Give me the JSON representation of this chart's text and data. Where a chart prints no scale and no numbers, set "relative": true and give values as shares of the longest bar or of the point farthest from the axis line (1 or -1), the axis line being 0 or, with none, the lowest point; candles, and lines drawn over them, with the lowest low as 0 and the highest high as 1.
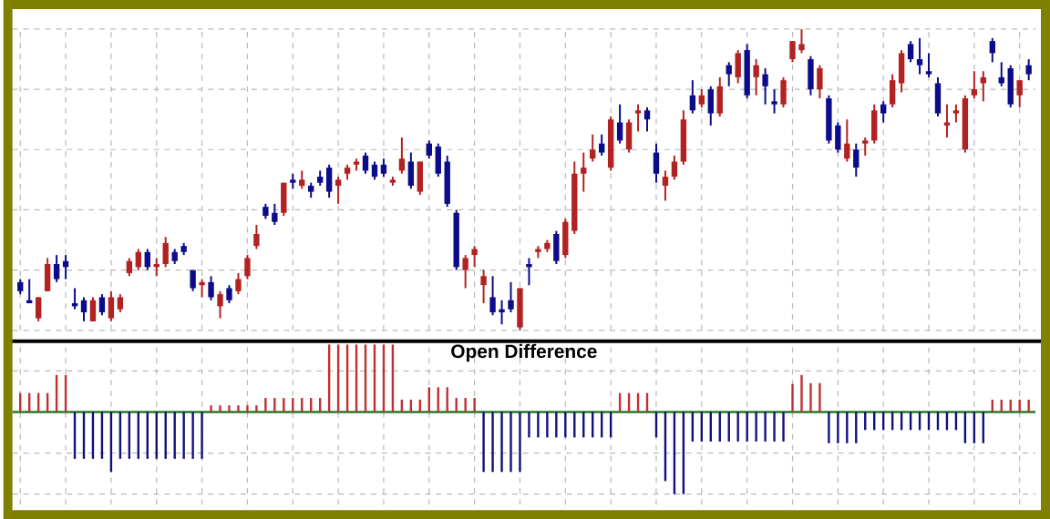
{
  "chart_data": [
    {
      "type": "candlestick",
      "relative": true,
      "grid": true,
      "categories": [
        null,
        null,
        null,
        null,
        null,
        null,
        null,
        null,
        null,
        null,
        null,
        null,
        null,
        null,
        null,
        null,
        null,
        null,
        null,
        null,
        null,
        null,
        null,
        null,
        null,
        null,
        null,
        null,
        null,
        null,
        null,
        null,
        null,
        null,
        null,
        null,
        null,
        null,
        null,
        null,
        null,
        null,
        null,
        null,
        null,
        null,
        null,
        null,
        null,
        null,
        null,
        null,
        null,
        null,
        null,
        null,
        null,
        null,
        null,
        null,
        null,
        null,
        null,
        null,
        null,
        null,
        null,
        null,
        null,
        null,
        null,
        null,
        null,
        null,
        null,
        null,
        null,
        null,
        null,
        null,
        null,
        null,
        null,
        null,
        null,
        null,
        null,
        null,
        null,
        null,
        null,
        null,
        null,
        null,
        null,
        null,
        null,
        null,
        null,
        null,
        null,
        null,
        null,
        null,
        null,
        null,
        null,
        null,
        null,
        null,
        null,
        null
      ],
      "ohlc": [
        [
          0.16,
          0.17,
          0.12,
          0.13
        ],
        [
          0.1,
          0.17,
          0.09,
          0.09
        ],
        [
          0.04,
          0.11,
          0.03,
          0.11
        ],
        [
          0.13,
          0.24,
          0.13,
          0.22
        ],
        [
          0.22,
          0.25,
          0.16,
          0.17
        ],
        [
          0.23,
          0.25,
          0.17,
          0.21
        ],
        [
          0.09,
          0.14,
          0.07,
          0.08
        ],
        [
          0.1,
          0.11,
          0.03,
          0.06
        ],
        [
          0.03,
          0.11,
          0.03,
          0.1
        ],
        [
          0.11,
          0.12,
          0.05,
          0.06
        ],
        [
          0.04,
          0.13,
          0.03,
          0.11
        ],
        [
          0.07,
          0.12,
          0.06,
          0.11
        ],
        [
          0.19,
          0.24,
          0.18,
          0.23
        ],
        [
          0.21,
          0.27,
          0.2,
          0.26
        ],
        [
          0.26,
          0.27,
          0.2,
          0.21
        ],
        [
          0.21,
          0.24,
          0.18,
          0.22
        ],
        [
          0.22,
          0.31,
          0.21,
          0.29
        ],
        [
          0.26,
          0.27,
          0.22,
          0.23
        ],
        [
          0.28,
          0.29,
          0.25,
          0.26
        ],
        [
          0.2,
          0.2,
          0.13,
          0.14
        ],
        [
          0.15,
          0.17,
          0.11,
          0.16
        ],
        [
          0.16,
          0.18,
          0.1,
          0.11
        ],
        [
          0.08,
          0.13,
          0.04,
          0.12
        ],
        [
          0.14,
          0.15,
          0.09,
          0.1
        ],
        [
          0.13,
          0.19,
          0.12,
          0.17
        ],
        [
          0.18,
          0.25,
          0.17,
          0.24
        ],
        [
          0.28,
          0.35,
          0.27,
          0.32
        ],
        [
          0.41,
          0.42,
          0.37,
          0.38
        ],
        [
          0.39,
          0.42,
          0.35,
          0.36
        ],
        [
          0.39,
          0.49,
          0.38,
          0.49
        ],
        [
          0.5,
          0.52,
          0.47,
          0.49
        ],
        [
          0.48,
          0.53,
          0.47,
          0.5
        ],
        [
          0.48,
          0.49,
          0.44,
          0.46
        ],
        [
          0.51,
          0.53,
          0.48,
          0.49
        ],
        [
          0.54,
          0.55,
          0.44,
          0.46
        ],
        [
          0.48,
          0.51,
          0.42,
          0.5
        ],
        [
          0.52,
          0.55,
          0.5,
          0.54
        ],
        [
          0.55,
          0.57,
          0.53,
          0.56
        ],
        [
          0.58,
          0.59,
          0.52,
          0.53
        ],
        [
          0.55,
          0.56,
          0.5,
          0.51
        ],
        [
          0.55,
          0.57,
          0.51,
          0.52
        ],
        [
          0.49,
          0.51,
          0.48,
          0.5
        ],
        [
          0.53,
          0.64,
          0.52,
          0.57
        ],
        [
          0.56,
          0.59,
          0.47,
          0.48
        ],
        [
          0.46,
          0.56,
          0.45,
          0.56
        ],
        [
          0.62,
          0.63,
          0.57,
          0.58
        ],
        [
          0.61,
          0.62,
          0.51,
          0.52
        ],
        [
          0.56,
          0.58,
          0.41,
          0.42
        ],
        [
          0.39,
          0.4,
          0.2,
          0.21
        ],
        [
          0.2,
          0.25,
          0.14,
          0.24
        ],
        [
          0.25,
          0.28,
          0.21,
          0.27
        ],
        [
          0.15,
          0.2,
          0.09,
          0.18
        ],
        [
          0.11,
          0.18,
          0.05,
          0.06
        ],
        [
          0.07,
          0.1,
          0.02,
          0.06
        ],
        [
          0.1,
          0.16,
          0.06,
          0.07
        ],
        [
          0.01,
          0.14,
          0.0,
          0.14
        ],
        [
          0.22,
          0.24,
          0.15,
          0.21
        ],
        [
          0.26,
          0.28,
          0.24,
          0.27
        ],
        [
          0.27,
          0.3,
          0.26,
          0.29
        ],
        [
          0.32,
          0.33,
          0.22,
          0.23
        ],
        [
          0.25,
          0.37,
          0.24,
          0.36
        ],
        [
          0.33,
          0.56,
          0.32,
          0.52
        ],
        [
          0.52,
          0.59,
          0.46,
          0.54
        ],
        [
          0.57,
          0.65,
          0.56,
          0.6
        ],
        [
          0.62,
          0.65,
          0.58,
          0.59
        ],
        [
          0.54,
          0.71,
          0.53,
          0.7
        ],
        [
          0.69,
          0.75,
          0.62,
          0.63
        ],
        [
          0.6,
          0.7,
          0.59,
          0.69
        ],
        [
          0.72,
          0.75,
          0.66,
          0.73
        ],
        [
          0.73,
          0.74,
          0.66,
          0.7
        ],
        [
          0.59,
          0.62,
          0.49,
          0.52
        ],
        [
          0.48,
          0.53,
          0.43,
          0.51
        ],
        [
          0.51,
          0.58,
          0.5,
          0.56
        ],
        [
          0.56,
          0.73,
          0.55,
          0.7
        ],
        [
          0.78,
          0.83,
          0.72,
          0.73
        ],
        [
          0.75,
          0.8,
          0.74,
          0.78
        ],
        [
          0.8,
          0.81,
          0.68,
          0.72
        ],
        [
          0.72,
          0.84,
          0.71,
          0.81
        ],
        [
          0.88,
          0.89,
          0.81,
          0.85
        ],
        [
          0.84,
          0.93,
          0.82,
          0.92
        ],
        [
          0.93,
          0.95,
          0.77,
          0.78
        ],
        [
          0.84,
          0.9,
          0.78,
          0.88
        ],
        [
          0.85,
          0.87,
          0.75,
          0.81
        ],
        [
          0.76,
          0.8,
          0.72,
          0.75
        ],
        [
          0.75,
          0.84,
          0.74,
          0.83
        ],
        [
          0.9,
          0.96,
          0.89,
          0.96
        ],
        [
          0.93,
          1.0,
          0.92,
          0.95
        ],
        [
          0.9,
          0.91,
          0.78,
          0.8
        ],
        [
          0.8,
          0.88,
          0.77,
          0.87
        ],
        [
          0.77,
          0.78,
          0.62,
          0.63
        ],
        [
          0.68,
          0.69,
          0.59,
          0.6
        ],
        [
          0.57,
          0.7,
          0.56,
          0.62
        ],
        [
          0.6,
          0.62,
          0.51,
          0.54
        ],
        [
          0.62,
          0.64,
          0.58,
          0.63
        ],
        [
          0.63,
          0.75,
          0.62,
          0.73
        ],
        [
          0.75,
          0.76,
          0.69,
          0.72
        ],
        [
          0.75,
          0.85,
          0.74,
          0.83
        ],
        [
          0.82,
          0.93,
          0.79,
          0.92
        ],
        [
          0.95,
          0.96,
          0.89,
          0.9
        ],
        [
          0.9,
          0.97,
          0.85,
          0.88
        ],
        [
          0.86,
          0.92,
          0.84,
          0.85
        ],
        [
          0.82,
          0.84,
          0.71,
          0.72
        ],
        [
          0.68,
          0.75,
          0.64,
          0.69
        ],
        [
          0.72,
          0.75,
          0.69,
          0.73
        ],
        [
          0.6,
          0.78,
          0.59,
          0.77
        ],
        [
          0.78,
          0.86,
          0.77,
          0.8
        ],
        [
          0.82,
          0.86,
          0.76,
          0.84
        ],
        [
          0.96,
          0.97,
          0.89,
          0.92
        ],
        [
          0.84,
          0.89,
          0.81,
          0.82
        ],
        [
          0.87,
          0.88,
          0.74,
          0.75
        ],
        [
          0.78,
          0.83,
          0.74,
          0.83
        ],
        [
          0.88,
          0.9,
          0.83,
          0.85
        ]
      ],
      "colors": [
        "#0c0c8a",
        "#0c0c8a",
        "#b22222",
        "#b22222",
        "#0c0c8a",
        "#0c0c8a",
        "#0c0c8a",
        "#0c0c8a",
        "#b22222",
        "#0c0c8a",
        "#b22222",
        "#b22222",
        "#b22222",
        "#b22222",
        "#0c0c8a",
        "#b22222",
        "#b22222",
        "#0c0c8a",
        "#0c0c8a",
        "#0c0c8a",
        "#b22222",
        "#0c0c8a",
        "#b22222",
        "#0c0c8a",
        "#b22222",
        "#b22222",
        "#b22222",
        "#0c0c8a",
        "#0c0c8a",
        "#b22222",
        "#0c0c8a",
        "#b22222",
        "#0c0c8a",
        "#0c0c8a",
        "#0c0c8a",
        "#b22222",
        "#b22222",
        "#b22222",
        "#0c0c8a",
        "#0c0c8a",
        "#0c0c8a",
        "#b22222",
        "#b22222",
        "#0c0c8a",
        "#b22222",
        "#0c0c8a",
        "#0c0c8a",
        "#0c0c8a",
        "#0c0c8a",
        "#b22222",
        "#b22222",
        "#b22222",
        "#0c0c8a",
        "#0c0c8a",
        "#0c0c8a",
        "#b22222",
        "#0c0c8a",
        "#b22222",
        "#b22222",
        "#0c0c8a",
        "#b22222",
        "#b22222",
        "#b22222",
        "#b22222",
        "#0c0c8a",
        "#b22222",
        "#0c0c8a",
        "#b22222",
        "#b22222",
        "#0c0c8a",
        "#0c0c8a",
        "#b22222",
        "#b22222",
        "#b22222",
        "#0c0c8a",
        "#b22222",
        "#0c0c8a",
        "#b22222",
        "#0c0c8a",
        "#b22222",
        "#0c0c8a",
        "#b22222",
        "#0c0c8a",
        "#0c0c8a",
        "#b22222",
        "#b22222",
        "#b22222",
        "#0c0c8a",
        "#b22222",
        "#0c0c8a",
        "#0c0c8a",
        "#b22222",
        "#0c0c8a",
        "#b22222",
        "#b22222",
        "#0c0c8a",
        "#b22222",
        "#b22222",
        "#0c0c8a",
        "#0c0c8a",
        "#0c0c8a",
        "#0c0c8a",
        "#b22222",
        "#b22222",
        "#b22222",
        "#b22222",
        "#b22222",
        "#0c0c8a",
        "#0c0c8a",
        "#0c0c8a",
        "#b22222",
        "#0c0c8a"
      ]
    },
    {
      "type": "bar",
      "title": "Open Difference",
      "relative": true,
      "grid": true,
      "categories": [
        null,
        null,
        null,
        null,
        null,
        null,
        null,
        null,
        null,
        null,
        null,
        null,
        null,
        null,
        null,
        null,
        null,
        null,
        null,
        null,
        null,
        null,
        null,
        null,
        null,
        null,
        null,
        null,
        null,
        null,
        null,
        null,
        null,
        null,
        null,
        null,
        null,
        null,
        null,
        null,
        null,
        null,
        null,
        null,
        null,
        null,
        null,
        null,
        null,
        null,
        null,
        null,
        null,
        null,
        null,
        null,
        null,
        null,
        null,
        null,
        null,
        null,
        null,
        null,
        null,
        null,
        null,
        null,
        null,
        null,
        null,
        null,
        null,
        null,
        null,
        null,
        null,
        null,
        null,
        null,
        null,
        null,
        null,
        null,
        null,
        null,
        null,
        null,
        null,
        null,
        null,
        null,
        null,
        null,
        null,
        null,
        null,
        null,
        null,
        null,
        null,
        null,
        null,
        null,
        null,
        null,
        null,
        null,
        null,
        null,
        null,
        null
      ],
      "values": [
        0.23,
        0.23,
        0.23,
        0.23,
        0.45,
        0.45,
        -0.57,
        -0.57,
        -0.57,
        -0.57,
        -0.73,
        -0.57,
        -0.57,
        -0.57,
        -0.57,
        -0.57,
        -0.57,
        -0.57,
        -0.57,
        -0.57,
        -0.57,
        0.08,
        0.08,
        0.08,
        0.08,
        0.08,
        0.08,
        0.17,
        0.17,
        0.17,
        0.17,
        0.17,
        0.17,
        0.17,
        0.82,
        0.82,
        0.82,
        0.82,
        0.82,
        0.82,
        0.82,
        0.82,
        0.15,
        0.15,
        0.15,
        0.3,
        0.3,
        0.3,
        0.17,
        0.17,
        0.17,
        -0.73,
        -0.73,
        -0.73,
        -0.73,
        -0.73,
        -0.31,
        -0.31,
        -0.31,
        -0.31,
        -0.31,
        -0.31,
        -0.31,
        -0.31,
        -0.31,
        -0.31,
        0.23,
        0.23,
        0.23,
        0.23,
        -0.31,
        -0.84,
        -1,
        -1,
        -0.36,
        -0.36,
        -0.36,
        -0.36,
        -0.36,
        -0.36,
        -0.36,
        -0.36,
        -0.36,
        -0.36,
        -0.36,
        0.34,
        0.45,
        0.35,
        0.35,
        -0.38,
        -0.38,
        -0.38,
        -0.38,
        -0.22,
        -0.22,
        -0.22,
        -0.22,
        -0.22,
        -0.22,
        -0.22,
        -0.22,
        -0.22,
        -0.22,
        -0.22,
        -0.38,
        -0.38,
        -0.38,
        0.15,
        0.15,
        0.15,
        0.15,
        0.15
      ],
      "colors": [
        "#c03030",
        "#c03030",
        "#c03030",
        "#c03030",
        "#c03030",
        "#c03030",
        "#10107a",
        "#10107a",
        "#10107a",
        "#10107a",
        "#10107a",
        "#10107a",
        "#10107a",
        "#10107a",
        "#10107a",
        "#10107a",
        "#10107a",
        "#10107a",
        "#10107a",
        "#10107a",
        "#10107a",
        "#c03030",
        "#c03030",
        "#c03030",
        "#c03030",
        "#c03030",
        "#c03030",
        "#c03030",
        "#c03030",
        "#c03030",
        "#c03030",
        "#c03030",
        "#c03030",
        "#c03030",
        "#c03030",
        "#c03030",
        "#c03030",
        "#c03030",
        "#c03030",
        "#c03030",
        "#c03030",
        "#c03030",
        "#c03030",
        "#c03030",
        "#c03030",
        "#c03030",
        "#c03030",
        "#c03030",
        "#c03030",
        "#c03030",
        "#c03030",
        "#10107a",
        "#10107a",
        "#10107a",
        "#10107a",
        "#10107a",
        "#10107a",
        "#10107a",
        "#10107a",
        "#10107a",
        "#10107a",
        "#10107a",
        "#10107a",
        "#10107a",
        "#10107a",
        "#10107a",
        "#c03030",
        "#c03030",
        "#c03030",
        "#c03030",
        "#10107a",
        "#10107a",
        "#10107a",
        "#10107a",
        "#10107a",
        "#10107a",
        "#10107a",
        "#10107a",
        "#10107a",
        "#10107a",
        "#10107a",
        "#10107a",
        "#10107a",
        "#10107a",
        "#10107a",
        "#c03030",
        "#c03030",
        "#c03030",
        "#c03030",
        "#10107a",
        "#10107a",
        "#10107a",
        "#10107a",
        "#10107a",
        "#10107a",
        "#10107a",
        "#10107a",
        "#10107a",
        "#10107a",
        "#10107a",
        "#10107a",
        "#10107a",
        "#10107a",
        "#10107a",
        "#10107a",
        "#10107a",
        "#10107a",
        "#c03030",
        "#c03030",
        "#c03030",
        "#c03030",
        "#c03030"
      ],
      "ref_lines": [
        {
          "axis": "y",
          "value": 0,
          "color": "#2a7a2a"
        }
      ]
    }
  ]
}
